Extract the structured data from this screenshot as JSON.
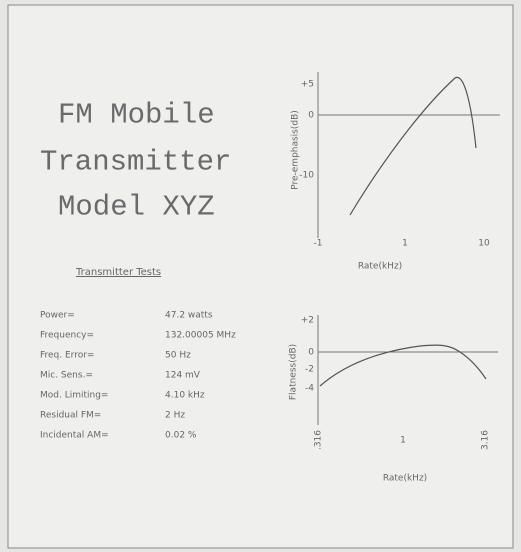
{
  "card": {
    "title_lines": [
      "FM Mobile",
      "Transmitter",
      "Model XYZ"
    ],
    "tests_heading": "Transmitter Tests",
    "tests": [
      [
        "Power=",
        "47.2 watts"
      ],
      [
        "Frequency=",
        "132.00005 MHz"
      ],
      [
        "Freq. Error=",
        "50 Hz"
      ],
      [
        "Mic. Sens.=",
        "124 mV"
      ],
      [
        "Mod. Limiting=",
        "4.10 kHz"
      ],
      [
        "Residual FM=",
        "2 Hz"
      ],
      [
        "Incidental AM=",
        "0.02 %"
      ]
    ],
    "pre_emphasis": {
      "ylabel": "Pre-emphasis(dB)",
      "xlabel": "Rate(kHz)",
      "yticks": [
        "+5",
        "0",
        "-10"
      ],
      "xticks": [
        "-1",
        "1",
        "10"
      ]
    },
    "flatness": {
      "ylabel": "Flatness(dB)",
      "xlabel": "Rate(kHz)",
      "yticks": [
        "+2",
        "0",
        "-2",
        "-4"
      ],
      "xticks": [
        ".316",
        "1",
        "3.16"
      ]
    }
  }
}
